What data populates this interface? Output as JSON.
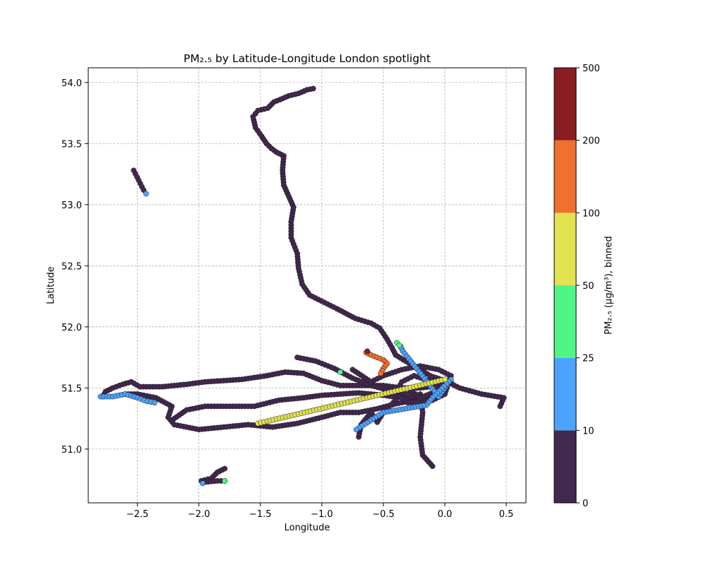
{
  "chart_data": {
    "type": "scatter",
    "title": "PM₂.₅ by Latitude-Longitude London spotlight",
    "xlabel": "Longitude",
    "ylabel": "Latitude",
    "xlim": [
      -2.9,
      0.66
    ],
    "ylim": [
      50.56,
      54.12
    ],
    "xticks": [
      -2.5,
      -2.0,
      -1.5,
      -1.0,
      -0.5,
      0.0,
      0.5
    ],
    "xtick_labels": [
      "−2.5",
      "−2.0",
      "−1.5",
      "−1.0",
      "−0.5",
      "0.0",
      "0.5"
    ],
    "yticks": [
      51.0,
      51.5,
      52.0,
      52.5,
      53.0,
      53.5,
      54.0
    ],
    "ytick_labels": [
      "51.0",
      "51.5",
      "52.0",
      "52.5",
      "53.0",
      "53.5",
      "54.0"
    ],
    "grid": true,
    "colorbar": {
      "label": "PM₂.₅ (µg/m³), binned",
      "bounds": [
        0,
        10,
        25,
        50,
        100,
        200,
        500
      ],
      "bound_labels": [
        "0",
        "10",
        "25",
        "50",
        "100",
        "200",
        "500"
      ],
      "colors": [
        "#43284f",
        "#4ca3ff",
        "#50f685",
        "#e3e250",
        "#f1702e",
        "#891d22"
      ]
    },
    "tracks": [
      {
        "bin": 0,
        "points": [
          [
            -1.07,
            53.95
          ],
          [
            -1.12,
            53.94
          ],
          [
            -1.19,
            53.91
          ],
          [
            -1.27,
            53.89
          ],
          [
            -1.34,
            53.86
          ],
          [
            -1.39,
            53.84
          ],
          [
            -1.44,
            53.79
          ],
          [
            -1.52,
            53.77
          ],
          [
            -1.56,
            53.72
          ],
          [
            -1.54,
            53.63
          ],
          [
            -1.49,
            53.56
          ],
          [
            -1.45,
            53.5
          ],
          [
            -1.41,
            53.46
          ],
          [
            -1.37,
            53.43
          ],
          [
            -1.31,
            53.4
          ],
          [
            -1.32,
            53.28
          ],
          [
            -1.31,
            53.16
          ],
          [
            -1.27,
            53.07
          ],
          [
            -1.23,
            52.98
          ],
          [
            -1.25,
            52.86
          ],
          [
            -1.25,
            52.73
          ],
          [
            -1.2,
            52.6
          ],
          [
            -1.19,
            52.48
          ],
          [
            -1.16,
            52.35
          ],
          [
            -1.1,
            52.26
          ],
          [
            -0.98,
            52.2
          ],
          [
            -0.88,
            52.15
          ],
          [
            -0.73,
            52.07
          ],
          [
            -0.6,
            52.03
          ],
          [
            -0.53,
            51.99
          ],
          [
            -0.47,
            51.9
          ],
          [
            -0.43,
            51.83
          ],
          [
            -0.4,
            51.77
          ],
          [
            -0.32,
            51.72
          ],
          [
            -0.21,
            51.66
          ],
          [
            -0.12,
            51.6
          ],
          [
            0.0,
            51.56
          ],
          [
            0.12,
            51.5
          ],
          [
            0.3,
            51.45
          ],
          [
            0.48,
            51.42
          ],
          [
            0.45,
            51.35
          ]
        ]
      },
      {
        "bin": 0,
        "points": [
          [
            -2.78,
            51.43
          ],
          [
            -2.76,
            51.47
          ],
          [
            -2.7,
            51.5
          ],
          [
            -2.62,
            51.53
          ],
          [
            -2.55,
            51.55
          ],
          [
            -2.48,
            51.51
          ],
          [
            -2.3,
            51.51
          ],
          [
            -2.1,
            51.53
          ],
          [
            -1.95,
            51.55
          ],
          [
            -1.8,
            51.56
          ],
          [
            -1.65,
            51.57
          ],
          [
            -1.45,
            51.6
          ],
          [
            -1.3,
            51.63
          ],
          [
            -1.15,
            51.62
          ],
          [
            -1.0,
            51.56
          ],
          [
            -0.85,
            51.52
          ],
          [
            -0.7,
            51.52
          ],
          [
            -0.5,
            51.52
          ],
          [
            -0.35,
            51.5
          ],
          [
            -0.2,
            51.5
          ],
          [
            -0.05,
            51.52
          ],
          [
            0.05,
            51.55
          ]
        ]
      },
      {
        "bin": 0,
        "points": [
          [
            -2.6,
            51.45
          ],
          [
            -2.5,
            51.45
          ],
          [
            -2.35,
            51.42
          ],
          [
            -2.22,
            51.35
          ],
          [
            -2.25,
            51.26
          ],
          [
            -2.2,
            51.2
          ],
          [
            -2.0,
            51.16
          ],
          [
            -1.8,
            51.18
          ],
          [
            -1.6,
            51.2
          ],
          [
            -1.4,
            51.18
          ],
          [
            -1.2,
            51.21
          ],
          [
            -1.0,
            51.26
          ],
          [
            -0.85,
            51.3
          ],
          [
            -0.7,
            51.3
          ],
          [
            -0.55,
            51.33
          ],
          [
            -0.4,
            51.37
          ],
          [
            -0.25,
            51.4
          ],
          [
            -0.1,
            51.42
          ]
        ]
      },
      {
        "bin": 0,
        "points": [
          [
            -2.2,
            51.25
          ],
          [
            -2.1,
            51.32
          ],
          [
            -1.95,
            51.35
          ],
          [
            -1.75,
            51.35
          ],
          [
            -1.55,
            51.35
          ],
          [
            -1.35,
            51.4
          ],
          [
            -1.15,
            51.42
          ],
          [
            -1.0,
            51.44
          ],
          [
            -0.85,
            51.45
          ],
          [
            -0.7,
            51.46
          ],
          [
            -0.5,
            51.44
          ],
          [
            -0.35,
            51.42
          ],
          [
            -0.2,
            51.44
          ]
        ]
      },
      {
        "bin": 0,
        "points": [
          [
            -1.2,
            51.75
          ],
          [
            -1.05,
            51.72
          ],
          [
            -0.9,
            51.66
          ],
          [
            -0.75,
            51.58
          ],
          [
            -0.6,
            51.52
          ],
          [
            -0.45,
            51.48
          ],
          [
            -0.3,
            51.45
          ]
        ]
      },
      {
        "bin": 0,
        "points": [
          [
            -0.7,
            51.1
          ],
          [
            -0.68,
            51.2
          ],
          [
            -0.6,
            51.3
          ],
          [
            -0.55,
            51.22
          ],
          [
            -0.5,
            51.3
          ],
          [
            -0.4,
            51.4
          ]
        ]
      },
      {
        "bin": 0,
        "points": [
          [
            -0.2,
            51.45
          ],
          [
            -0.18,
            51.3
          ],
          [
            -0.2,
            51.1
          ],
          [
            -0.18,
            50.95
          ],
          [
            -0.1,
            50.86
          ]
        ]
      },
      {
        "bin": 0,
        "points": [
          [
            -0.75,
            51.65
          ],
          [
            -0.6,
            51.55
          ],
          [
            -0.5,
            51.6
          ],
          [
            -0.35,
            51.65
          ],
          [
            -0.2,
            51.68
          ],
          [
            -0.05,
            51.65
          ],
          [
            0.05,
            51.6
          ],
          [
            0.0,
            51.45
          ],
          [
            -0.1,
            51.4
          ],
          [
            -0.3,
            51.38
          ],
          [
            -0.4,
            51.45
          ],
          [
            -0.35,
            51.55
          ],
          [
            -0.25,
            51.6
          ],
          [
            -0.1,
            51.55
          ],
          [
            -0.05,
            51.48
          ],
          [
            -0.2,
            51.42
          ],
          [
            -0.3,
            51.5
          ]
        ]
      },
      {
        "bin": 0,
        "points": [
          [
            -2.53,
            53.28
          ],
          [
            -2.49,
            53.2
          ],
          [
            -2.45,
            53.12
          ]
        ]
      },
      {
        "bin": 0,
        "points": [
          [
            -1.98,
            50.74
          ],
          [
            -1.9,
            50.76
          ],
          [
            -1.85,
            50.81
          ],
          [
            -1.79,
            50.84
          ]
        ]
      },
      {
        "bin": 0,
        "points": [
          [
            -1.95,
            50.73
          ],
          [
            -1.85,
            50.74
          ],
          [
            -1.79,
            50.74
          ]
        ]
      },
      {
        "bin": 1,
        "points": [
          [
            -2.8,
            51.43
          ],
          [
            -2.7,
            51.43
          ],
          [
            -2.6,
            51.45
          ],
          [
            -2.5,
            51.42
          ],
          [
            -2.42,
            51.39
          ],
          [
            -2.36,
            51.38
          ]
        ]
      },
      {
        "bin": 1,
        "points": [
          [
            -2.43,
            53.09
          ]
        ]
      },
      {
        "bin": 1,
        "points": [
          [
            -1.97,
            50.72
          ]
        ]
      },
      {
        "bin": 1,
        "points": [
          [
            -0.36,
            51.84
          ],
          [
            -0.34,
            51.8
          ],
          [
            -0.05,
            51.43
          ],
          [
            0.05,
            51.57
          ],
          [
            -0.1,
            51.42
          ],
          [
            -0.15,
            51.36
          ],
          [
            -0.5,
            51.3
          ],
          [
            -0.72,
            51.16
          ]
        ]
      },
      {
        "bin": 2,
        "points": [
          [
            -0.39,
            51.87
          ],
          [
            -0.37,
            51.85
          ]
        ]
      },
      {
        "bin": 2,
        "points": [
          [
            -1.79,
            50.74
          ]
        ]
      },
      {
        "bin": 2,
        "points": [
          [
            -0.85,
            51.63
          ]
        ]
      },
      {
        "bin": 3,
        "points": [
          [
            -1.52,
            51.21
          ],
          [
            0.0,
            51.57
          ]
        ]
      },
      {
        "bin": 4,
        "points": [
          [
            -0.64,
            51.79
          ],
          [
            -0.6,
            51.77
          ],
          [
            -0.55,
            51.75
          ],
          [
            -0.5,
            51.73
          ],
          [
            -0.47,
            51.7
          ],
          [
            -0.5,
            51.66
          ],
          [
            -0.52,
            51.62
          ]
        ]
      },
      {
        "bin": 5,
        "points": [
          [
            -0.63,
            51.8
          ]
        ]
      }
    ]
  }
}
